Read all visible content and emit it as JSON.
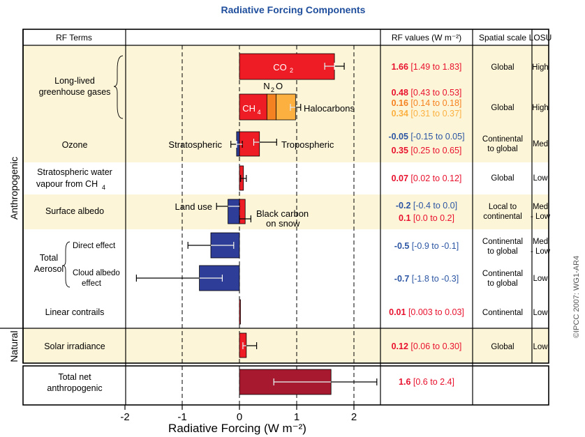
{
  "chart_data": {
    "type": "bar",
    "title": "Radiative Forcing Components",
    "xlabel": "Radiative Forcing  (W m⁻²)",
    "xlim": [
      -2,
      2.8
    ],
    "x_ticks": [
      "-2",
      "-1",
      "0",
      "1",
      "2"
    ],
    "grid_lines_x": [
      -1,
      1,
      2
    ],
    "copyright": "©IPCC  2007: WG1-AR4",
    "column_headers": {
      "rf_terms": "RF Terms",
      "rf_values": "RF values (W m⁻²)",
      "spatial_scale": "Spatial scale",
      "losu": "LOSU"
    },
    "groups": {
      "anthropogenic": "Anthropogenic",
      "natural": "Natural"
    },
    "colors": {
      "co2": "#ee1c25",
      "n2o": "#f58220",
      "halocarbons": "#fbb040",
      "positive": "#ee1c25",
      "negative": "#2e3d98",
      "total": "#a6192e",
      "band": "#fdf5d8",
      "positive_text": "#e8112d",
      "negative_text": "#2b55a3",
      "title_text": "#1f4e9c"
    },
    "rows": [
      {
        "label": "Long-lived greenhouse gases",
        "label_lines": [
          "Long-lived",
          "greenhouse gases"
        ],
        "band": true,
        "bars": [
          {
            "name": "CO₂",
            "start": 0,
            "value": 1.66,
            "range": [
              1.49,
              1.83
            ],
            "color_key": "co2"
          },
          {
            "name": "CH₄",
            "start": 0,
            "value": 0.48,
            "range": [
              0.43,
              0.53
            ],
            "color_key": "co2"
          },
          {
            "name": "N₂O",
            "start": 0.48,
            "value": 0.16,
            "range": [
              0.14,
              0.18
            ],
            "color_key": "n2o"
          },
          {
            "name": "Halocarbons",
            "start": 0.64,
            "value": 0.34,
            "range": [
              0.31,
              0.37
            ],
            "color_key": "halocarbons"
          }
        ],
        "rf_values": [
          {
            "best": "0.48",
            "range": "[0.43 to 0.53]",
            "color_key": "positive_text"
          },
          {
            "best": "0.16",
            "range": "[0.14 to 0.18]",
            "color_key": "n2o"
          },
          {
            "best": "0.34",
            "range": "[0.31 to 0.37]",
            "color_key": "halocarbons"
          }
        ],
        "co2_value": {
          "best": "1.66",
          "range": "[1.49 to 1.83]"
        },
        "spatial_scale": "Global",
        "losu": "High"
      },
      {
        "label": "Ozone",
        "band": true,
        "bars": [
          {
            "name": "Stratospheric",
            "start": 0,
            "value": -0.05,
            "range": [
              -0.15,
              0.05
            ],
            "color_key": "negative"
          },
          {
            "name": "Tropospheric",
            "start": 0,
            "value": 0.35,
            "range": [
              0.25,
              0.65
            ],
            "color_key": "positive"
          }
        ],
        "rf_values": [
          {
            "best": "-0.05",
            "range": "[-0.15 to 0.05]",
            "color_key": "negative_text"
          },
          {
            "best": "0.35",
            "range": "[0.25 to 0.65]",
            "color_key": "positive_text"
          }
        ],
        "spatial_scale": "Continental to global",
        "losu": "Med"
      },
      {
        "label": "Stratospheric water vapour from CH₄",
        "band": false,
        "bars": [
          {
            "name": "",
            "start": 0,
            "value": 0.07,
            "range": [
              0.02,
              0.12
            ],
            "color_key": "positive"
          }
        ],
        "rf_values": [
          {
            "best": "0.07",
            "range": "[0.02 to 0.12]",
            "color_key": "positive_text"
          }
        ],
        "spatial_scale": "Global",
        "losu": "Low"
      },
      {
        "label": "Surface albedo",
        "band": true,
        "bars": [
          {
            "name": "Land use",
            "start": 0,
            "value": -0.2,
            "range": [
              -0.4,
              0.0
            ],
            "color_key": "negative"
          },
          {
            "name": "Black carbon on snow",
            "start": 0,
            "value": 0.1,
            "range": [
              0.0,
              0.2
            ],
            "color_key": "positive"
          }
        ],
        "rf_values": [
          {
            "best": "-0.2",
            "range": "[-0.4 to 0.0]",
            "color_key": "negative_text"
          },
          {
            "best": "0.1",
            "range": "[0.0 to 0.2]",
            "color_key": "positive_text"
          }
        ],
        "spatial_scale": "Local to continental",
        "losu": "Med - Low"
      },
      {
        "label": "Direct effect",
        "group": "Total Aerosol",
        "band": false,
        "bars": [
          {
            "name": "",
            "start": 0,
            "value": -0.5,
            "range": [
              -0.9,
              -0.1
            ],
            "color_key": "negative"
          }
        ],
        "rf_values": [
          {
            "best": "-0.5",
            "range": "[-0.9 to -0.1]",
            "color_key": "negative_text"
          }
        ],
        "spatial_scale": "Continental to global",
        "losu": "Med - Low"
      },
      {
        "label": "Cloud albedo effect",
        "group": "Total Aerosol",
        "band": false,
        "bars": [
          {
            "name": "",
            "start": 0,
            "value": -0.7,
            "range": [
              -1.8,
              -0.3
            ],
            "color_key": "negative"
          }
        ],
        "rf_values": [
          {
            "best": "-0.7",
            "range": "[-1.8 to -0.3]",
            "color_key": "negative_text"
          }
        ],
        "spatial_scale": "Continental to global",
        "losu": "Low"
      },
      {
        "label": "Linear contrails",
        "band": false,
        "bars": [
          {
            "name": "",
            "start": 0,
            "value": 0.01,
            "range": [
              0.003,
              0.03
            ],
            "color_key": "positive"
          }
        ],
        "rf_values": [
          {
            "best": "0.01",
            "range": "[0.003 to 0.03]",
            "color_key": "positive_text"
          }
        ],
        "spatial_scale": "Continental",
        "losu": "Low"
      },
      {
        "label": "Solar irradiance",
        "band": true,
        "bars": [
          {
            "name": "",
            "start": 0,
            "value": 0.12,
            "range": [
              0.06,
              0.3
            ],
            "color_key": "positive"
          }
        ],
        "rf_values": [
          {
            "best": "0.12",
            "range": "[0.06 to 0.30]",
            "color_key": "positive_text"
          }
        ],
        "spatial_scale": "Global",
        "losu": "Low"
      },
      {
        "label": "Total net anthropogenic",
        "band": false,
        "bars": [
          {
            "name": "",
            "start": 0,
            "value": 1.6,
            "range": [
              0.6,
              2.4
            ],
            "color_key": "total"
          }
        ],
        "rf_values": [
          {
            "best": "1.6",
            "range": "[0.6 to 2.4]",
            "color_key": "positive_text"
          }
        ],
        "spatial_scale": "",
        "losu": ""
      }
    ]
  }
}
